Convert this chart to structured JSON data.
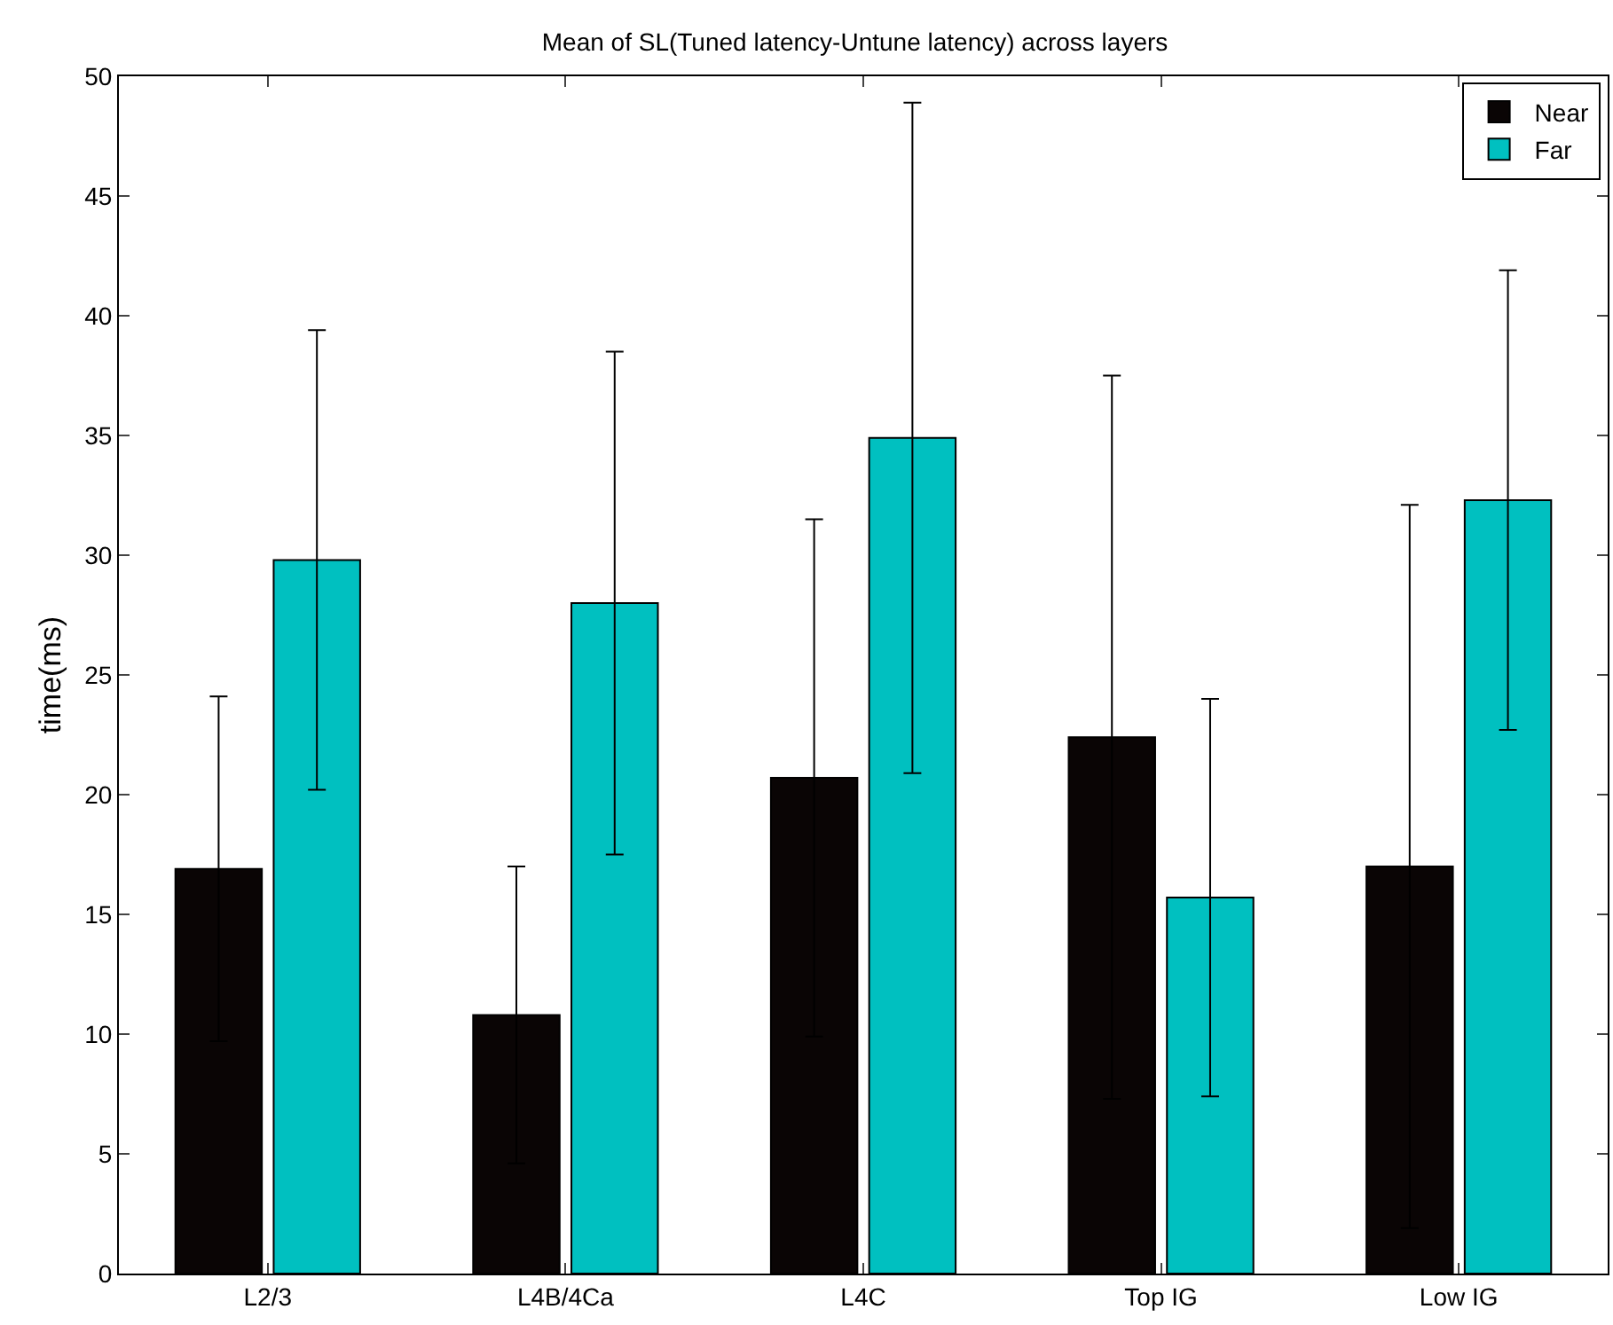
{
  "chart_data": {
    "type": "bar",
    "title": "Mean of SL(Tuned latency-Untune latency) across layers",
    "ylabel": "time(ms)",
    "categories": [
      "L2/3",
      "L4B/4Ca",
      "L4C",
      "Top IG",
      "Low IG"
    ],
    "series": [
      {
        "name": "Near",
        "color": "#0a0505",
        "values": [
          16.9,
          10.8,
          20.7,
          22.4,
          17.0
        ],
        "errors": [
          7.2,
          6.2,
          10.8,
          15.1,
          15.1
        ]
      },
      {
        "name": "Far",
        "color": "#00c0c0",
        "values": [
          29.8,
          28.0,
          34.9,
          15.7,
          32.3
        ],
        "errors": [
          9.6,
          10.5,
          14.0,
          8.3,
          9.6
        ]
      }
    ],
    "ylim": [
      0,
      50
    ],
    "yticks": [
      0,
      5,
      10,
      15,
      20,
      25,
      30,
      35,
      40,
      45,
      50
    ],
    "grid": false,
    "legend": "top right"
  }
}
